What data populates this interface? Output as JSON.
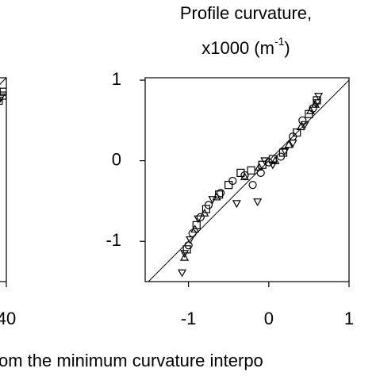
{
  "chart_data": [
    {
      "type": "scatter",
      "xlim": [
        -40,
        40
      ],
      "ylim": [
        -40,
        40
      ],
      "xticks": [
        40
      ],
      "identity_line": true,
      "series": [
        {
          "marker": "square",
          "color": "#000000",
          "x": [
            37,
            38.5,
            39
          ],
          "values": [
            31,
            33,
            34.5
          ]
        },
        {
          "marker": "triangle-down",
          "color": "#000000",
          "x": [
            36.5,
            38
          ],
          "values": [
            30,
            32.5
          ]
        }
      ]
    },
    {
      "type": "scatter",
      "title": "Profile curvature,",
      "subtitle": "x1000 (m",
      "subtitle_superscript": "-1",
      "subtitle_suffix": ")",
      "xlabel": "om the minimum curvature interpo",
      "xlim": [
        -1.54,
        1.0
      ],
      "ylim": [
        -1.5,
        1.03
      ],
      "xticks": [
        -1,
        0,
        1
      ],
      "yticks": [
        -1,
        0,
        1
      ],
      "identity_line": true,
      "series": [
        {
          "marker": "triangle-down",
          "color": "#000000",
          "x": [
            -1.08,
            -1.05,
            -0.98,
            -0.88,
            -0.7,
            -0.4,
            -0.14,
            -0.05,
            0.05,
            0.2,
            0.3,
            0.45,
            0.6,
            0.62
          ],
          "values": [
            -1.39,
            -1.15,
            -0.98,
            -0.72,
            -0.48,
            -0.53,
            -0.51,
            0.0,
            -0.05,
            0.12,
            0.22,
            0.45,
            0.72,
            0.8
          ]
        },
        {
          "marker": "circle",
          "color": "#000000",
          "x": [
            -1.0,
            -0.95,
            -0.85,
            -0.75,
            -0.6,
            -0.45,
            -0.3,
            -0.2,
            -0.1,
            0.0,
            0.15,
            0.3,
            0.42,
            0.55
          ],
          "values": [
            -1.05,
            -0.9,
            -0.7,
            -0.55,
            -0.4,
            -0.25,
            -0.18,
            -0.3,
            -0.15,
            -0.02,
            0.05,
            0.3,
            0.5,
            0.65
          ]
        },
        {
          "marker": "square",
          "color": "#000000",
          "x": [
            -1.02,
            -0.9,
            -0.78,
            -0.62,
            -0.5,
            -0.35,
            -0.22,
            -0.08,
            0.05,
            0.18,
            0.35,
            0.5,
            0.6
          ],
          "values": [
            -1.1,
            -0.8,
            -0.6,
            -0.42,
            -0.3,
            -0.15,
            -0.12,
            -0.05,
            0.02,
            0.1,
            0.35,
            0.58,
            0.75
          ]
        },
        {
          "marker": "triangle-up",
          "color": "#000000",
          "x": [
            -1.05,
            -0.92,
            -0.8,
            -0.65,
            -0.3,
            -0.12,
            0.08,
            0.25,
            0.4,
            0.52,
            0.58
          ],
          "values": [
            -1.2,
            -0.85,
            -0.65,
            -0.45,
            -0.2,
            -0.08,
            0.0,
            0.2,
            0.42,
            0.62,
            0.7
          ]
        }
      ]
    }
  ]
}
